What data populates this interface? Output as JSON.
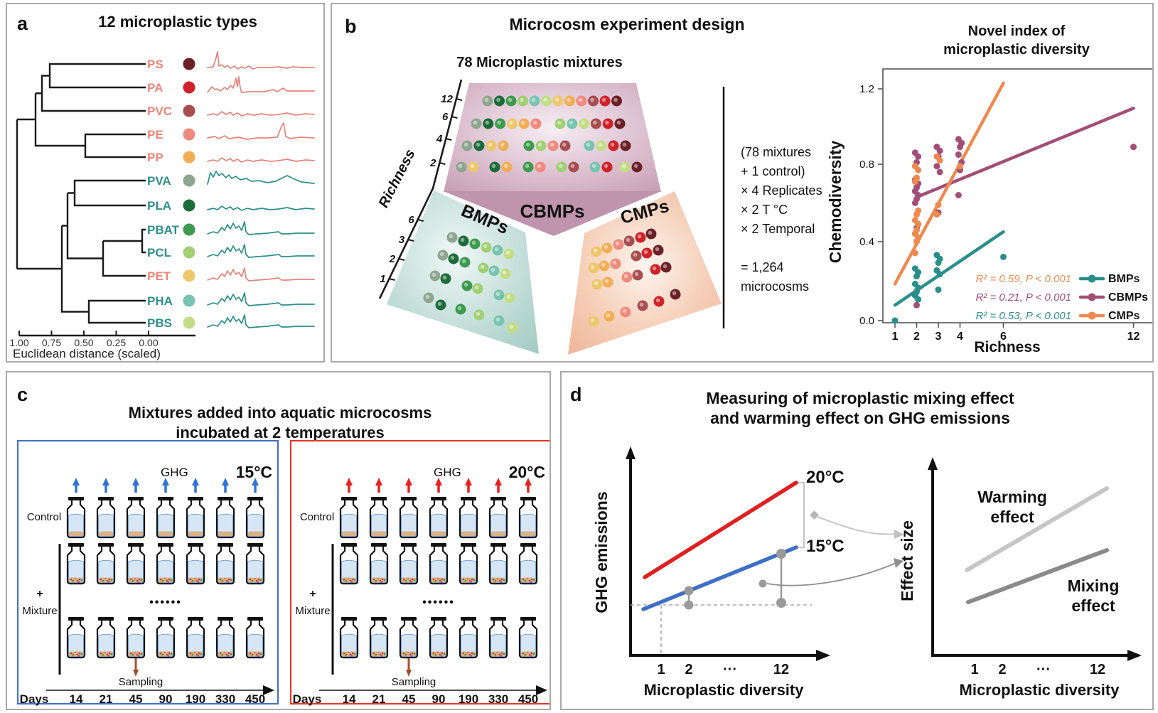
{
  "palette": {
    "PS": "#6b1f26",
    "PA": "#cf2128",
    "PVC": "#a84d50",
    "PE": "#ef8a7e",
    "PP": "#f2ae57",
    "PET": "#edc76c",
    "PVA": "#8fa590",
    "PLA": "#1c6b3a",
    "PBAT": "#3d9a4e",
    "PCL": "#a2cf75",
    "PHA": "#79c4b0",
    "PBS": "#c3dd85"
  },
  "colors": {
    "warm_label": "#ef8577",
    "cool_label": "#2e8f8a",
    "bmps": "#2a8f8a",
    "cbmps": "#a34e76",
    "cmps": "#ee8a4d",
    "red_line": "#e01f1f",
    "blue_line": "#3f6fc4",
    "warming": "#c6c6c6",
    "mixing": "#8a8a8a",
    "dumbbell": "#9a9a9a",
    "blue_box": "#4472c4",
    "red_box": "#e5392b",
    "blue_arrow": "#2e74d6",
    "red_arrow": "#e8211d",
    "sampling_arrow": "#a0522d"
  },
  "panel_a": {
    "tag": "a",
    "title": "12 microplastic types",
    "rows": [
      {
        "label": "PS",
        "label_color": "#ef8577",
        "dot_color": "#6b1f26",
        "spectrum_color": "#e8837a",
        "variant": 0
      },
      {
        "label": "PA",
        "label_color": "#ef8577",
        "dot_color": "#cf2128",
        "spectrum_color": "#e8837a",
        "variant": 1
      },
      {
        "label": "PVC",
        "label_color": "#ef8577",
        "dot_color": "#a84d50",
        "spectrum_color": "#e8837a",
        "variant": 2
      },
      {
        "label": "PE",
        "label_color": "#ef8577",
        "dot_color": "#ef8a7e",
        "spectrum_color": "#e8837a",
        "variant": 3
      },
      {
        "label": "PP",
        "label_color": "#ef8577",
        "dot_color": "#f2ae57",
        "spectrum_color": "#e8837a",
        "variant": 2
      },
      {
        "label": "PVA",
        "label_color": "#2e8f8a",
        "dot_color": "#8fa590",
        "spectrum_color": "#2a8f8a",
        "variant": 4
      },
      {
        "label": "PLA",
        "label_color": "#2e8f8a",
        "dot_color": "#1c6b3a",
        "spectrum_color": "#2a8f8a",
        "variant": 2
      },
      {
        "label": "PBAT",
        "label_color": "#2e8f8a",
        "dot_color": "#3d9a4e",
        "spectrum_color": "#2a8f8a",
        "variant": 5
      },
      {
        "label": "PCL",
        "label_color": "#2e8f8a",
        "dot_color": "#a2cf75",
        "spectrum_color": "#2a8f8a",
        "variant": 5
      },
      {
        "label": "PET",
        "label_color": "#ef8577",
        "dot_color": "#edc76c",
        "spectrum_color": "#e8837a",
        "variant": 5
      },
      {
        "label": "PHA",
        "label_color": "#2e8f8a",
        "dot_color": "#79c4b0",
        "spectrum_color": "#2a8f8a",
        "variant": 5
      },
      {
        "label": "PBS",
        "label_color": "#2e8f8a",
        "dot_color": "#c3dd85",
        "spectrum_color": "#2a8f8a",
        "variant": 5
      }
    ],
    "axis": {
      "ticks": [
        "1.00",
        "0.75",
        "0.50",
        "0.25",
        "0.00"
      ],
      "label": "Euclidean distance (scaled)"
    }
  },
  "panel_b": {
    "tag": "b",
    "title": "Microcosm experiment design",
    "subtitle": "78 Microplastic mixtures",
    "richness_axis": {
      "label": "Richness",
      "upper_ticks": [
        "12",
        "6",
        "4",
        "2"
      ],
      "lower_ticks": [
        "6",
        "3",
        "2",
        "1"
      ]
    },
    "groups": {
      "cbmps": {
        "label": "CBMPs",
        "rows": [
          [
            "PVA",
            "PLA",
            "PBAT",
            "PCL",
            "PHA",
            "PBS",
            "PET",
            "PP",
            "PE",
            "PVC",
            "PA",
            "PS"
          ],
          [
            "PVA",
            "PLA",
            "PBAT",
            "PET",
            "PP",
            "PE",
            "PCL",
            "PHA",
            "PBS",
            "PVC",
            "PA",
            "PS"
          ],
          [
            "PVA",
            "PLA",
            "PET",
            "PP",
            "PBAT",
            "PCL",
            "PE",
            "PVC",
            "PHA",
            "PBS",
            "PA",
            "PS"
          ],
          [
            "PVA",
            "PET",
            "PLA",
            "PP",
            "PBAT",
            "PE",
            "PCL",
            "PVC",
            "PHA",
            "PA",
            "PBS",
            "PS"
          ]
        ]
      },
      "bmps": {
        "label": "BMPs",
        "rows": [
          [
            "PVA",
            "PLA",
            "PBAT",
            "PCL",
            "PHA",
            "PBS"
          ],
          [
            "PVA",
            "PLA",
            "PBAT",
            "PCL",
            "PHA",
            "PBS"
          ],
          [
            "PVA",
            "PLA",
            "PBAT",
            "PCL",
            "PHA",
            "PBS"
          ],
          [
            "PVA",
            "PLA",
            "PBAT",
            "PCL",
            "PHA",
            "PBS"
          ]
        ]
      },
      "cmps": {
        "label": "CMPs",
        "rows": [
          [
            "PET",
            "PP",
            "PE",
            "PVC",
            "PA",
            "PS"
          ],
          [
            "PET",
            "PP",
            "PE",
            "PVC",
            "PA",
            "PS"
          ],
          [
            "PET",
            "PP",
            "PE",
            "PVC",
            "PA",
            "PS"
          ],
          [
            "PET",
            "PP",
            "PE",
            "PVC",
            "PA",
            "PS"
          ]
        ]
      }
    },
    "design_text": [
      "(78 mixtures",
      " + 1 control)",
      "× 4 Replicates",
      "× 2 T °C",
      "× 2 Temporal",
      "",
      "= 1,264",
      "microcosms"
    ],
    "plot": {
      "title_line1": "Novel index of",
      "title_line2": "microplastic diversity",
      "ylabel": "Chemodiversity",
      "xlabel": "Richness",
      "yticks": [
        "0.0",
        "0.4",
        "0.8",
        "1.2"
      ],
      "xticks": [
        "1",
        "2",
        "3",
        "4",
        "6",
        "12"
      ],
      "legend": [
        {
          "stat": "R² = 0.59, P < 0.001",
          "stat_color": "#ee8a4d",
          "name": "BMPs",
          "symbol_color": "#2a8f8a"
        },
        {
          "stat": "R² = 0.21, P < 0.001",
          "stat_color": "#a34e76",
          "name": "CBMPs",
          "symbol_color": "#a34e76"
        },
        {
          "stat": "R² = 0.53, P < 0.001",
          "stat_color": "#2a8f8a",
          "name": "CMPs",
          "symbol_color": "#ee8a4d"
        }
      ]
    }
  },
  "panel_c": {
    "tag": "c",
    "title_line1": "Mixtures added into aquatic microcosms",
    "title_line2": "incubated at 2 temperatures",
    "boxes": [
      {
        "temp": "15°C",
        "ghg": "GHG",
        "control": "Control",
        "plus": "+",
        "mixture": "Mixture",
        "dots": "••••••",
        "sampling": "Sampling",
        "days_label": "Days",
        "days": [
          "14",
          "21",
          "45",
          "90",
          "190",
          "330",
          "450"
        ],
        "border_color": "#4472c4",
        "arrow_color": "#2e74d6"
      },
      {
        "temp": "20°C",
        "ghg": "GHG",
        "control": "Control",
        "plus": "+",
        "mixture": "Mixture",
        "dots": "••••••",
        "sampling": "Sampling",
        "days_label": "Days",
        "days": [
          "14",
          "21",
          "45",
          "90",
          "190",
          "330",
          "450"
        ],
        "border_color": "#e5392b",
        "arrow_color": "#e8211d"
      }
    ]
  },
  "panel_d": {
    "tag": "d",
    "title_line1": "Measuring of microplastic mixing effect",
    "title_line2": "and warming effect on GHG emissions",
    "left": {
      "ylabel": "GHG emissions",
      "xlabel": "Microplastic diversity",
      "xticks": [
        "1",
        "2",
        "···",
        "12"
      ],
      "warm_label": "20°C",
      "cool_label": "15°C"
    },
    "right": {
      "ylabel": "Effect size",
      "xlabel": "Microplastic diversity",
      "xticks": [
        "1",
        "2",
        "···",
        "12"
      ],
      "warming_line1": "Warming",
      "warming_line2": "effect",
      "mixing_line1": "Mixing",
      "mixing_line2": "effect"
    }
  },
  "chart_data": [
    {
      "id": "richness-vs-chemodiversity",
      "type": "scatter",
      "title": "Novel index of microplastic diversity",
      "xlabel": "Richness",
      "ylabel": "Chemodiversity",
      "xticks": [
        1,
        2,
        3,
        4,
        6,
        12
      ],
      "yticks": [
        0.0,
        0.4,
        0.8,
        1.2
      ],
      "ylim": [
        -0.05,
        1.3
      ],
      "series": [
        {
          "name": "BMPs",
          "color": "#2a8f8a",
          "r2": 0.53,
          "p": "< 0.001",
          "fit": [
            [
              1,
              0.08
            ],
            [
              6,
              0.46
            ]
          ],
          "points": [
            [
              1,
              0.0
            ],
            [
              1.93,
              0.27
            ],
            [
              2.07,
              0.25
            ],
            [
              2,
              0.23
            ],
            [
              1.93,
              0.19
            ],
            [
              2.07,
              0.17
            ],
            [
              2,
              0.15
            ],
            [
              1.93,
              0.13
            ],
            [
              2.07,
              0.11
            ],
            [
              2.93,
              0.34
            ],
            [
              3.07,
              0.32
            ],
            [
              3,
              0.3
            ],
            [
              2.93,
              0.26
            ],
            [
              3.07,
              0.24
            ],
            [
              3,
              0.16
            ],
            [
              6,
              0.33
            ]
          ]
        },
        {
          "name": "CBMPs",
          "color": "#a34e76",
          "r2": 0.21,
          "p": "< 0.001",
          "fit": [
            [
              2,
              0.64
            ],
            [
              12,
              1.1
            ]
          ],
          "points": [
            [
              1.93,
              0.87
            ],
            [
              2.07,
              0.85
            ],
            [
              2,
              0.82
            ],
            [
              1.93,
              0.73
            ],
            [
              2.07,
              0.71
            ],
            [
              2,
              0.69
            ],
            [
              1.93,
              0.67
            ],
            [
              2.07,
              0.65
            ],
            [
              2,
              0.63
            ],
            [
              1.93,
              0.61
            ],
            [
              2.07,
              0.5
            ],
            [
              2,
              0.48
            ],
            [
              1.93,
              0.45
            ],
            [
              2,
              0.08
            ],
            [
              2.93,
              0.9
            ],
            [
              3.07,
              0.88
            ],
            [
              3,
              0.85
            ],
            [
              2.93,
              0.8
            ],
            [
              3.07,
              0.77
            ],
            [
              3,
              0.56
            ],
            [
              3.93,
              0.94
            ],
            [
              4.07,
              0.92
            ],
            [
              4,
              0.9
            ],
            [
              3.93,
              0.86
            ],
            [
              4.07,
              0.82
            ],
            [
              4,
              0.78
            ],
            [
              3.93,
              0.65
            ],
            [
              12,
              0.9
            ]
          ]
        },
        {
          "name": "CMPs",
          "color": "#ee8a4d",
          "r2": 0.59,
          "p": "< 0.001",
          "fit": [
            [
              1,
              0.19
            ],
            [
              6,
              1.23
            ]
          ],
          "points": [
            [
              1.93,
              0.8
            ],
            [
              2.07,
              0.78
            ],
            [
              2,
              0.74
            ],
            [
              1.93,
              0.72
            ],
            [
              2.07,
              0.57
            ],
            [
              2,
              0.55
            ],
            [
              1.93,
              0.52
            ],
            [
              2.07,
              0.5
            ],
            [
              2,
              0.47
            ],
            [
              1.93,
              0.45
            ],
            [
              2.07,
              0.43
            ],
            [
              2,
              0.41
            ],
            [
              1.93,
              0.35
            ],
            [
              2.93,
              0.85
            ],
            [
              3.07,
              0.83
            ],
            [
              3,
              0.6
            ],
            [
              2.93,
              0.55
            ],
            [
              4,
              0.8
            ]
          ]
        }
      ],
      "legend_position": "bottom-right"
    },
    {
      "id": "ghg-vs-diversity-concept",
      "type": "line",
      "xlabel": "Microplastic diversity",
      "ylabel": "GHG emissions",
      "xticks": [
        1,
        2,
        "...",
        12
      ],
      "series": [
        {
          "name": "20°C",
          "color": "#e01f1f",
          "x": [
            1,
            12
          ],
          "values": [
            0.45,
            0.95
          ]
        },
        {
          "name": "15°C",
          "color": "#3f6fc4",
          "x": [
            1,
            12
          ],
          "values": [
            0.28,
            0.62
          ]
        }
      ],
      "annotations": [
        "dashed baseline at control level",
        "effect-size dumbbells at diversity 2 and 12"
      ]
    },
    {
      "id": "effect-size-concept",
      "type": "line",
      "xlabel": "Microplastic diversity",
      "ylabel": "Effect size",
      "xticks": [
        1,
        2,
        "...",
        12
      ],
      "series": [
        {
          "name": "Warming effect",
          "color": "#c6c6c6",
          "x": [
            1,
            12
          ],
          "values": [
            0.45,
            0.85
          ]
        },
        {
          "name": "Mixing effect",
          "color": "#8a8a8a",
          "x": [
            1,
            12
          ],
          "values": [
            0.28,
            0.55
          ]
        }
      ]
    }
  ]
}
